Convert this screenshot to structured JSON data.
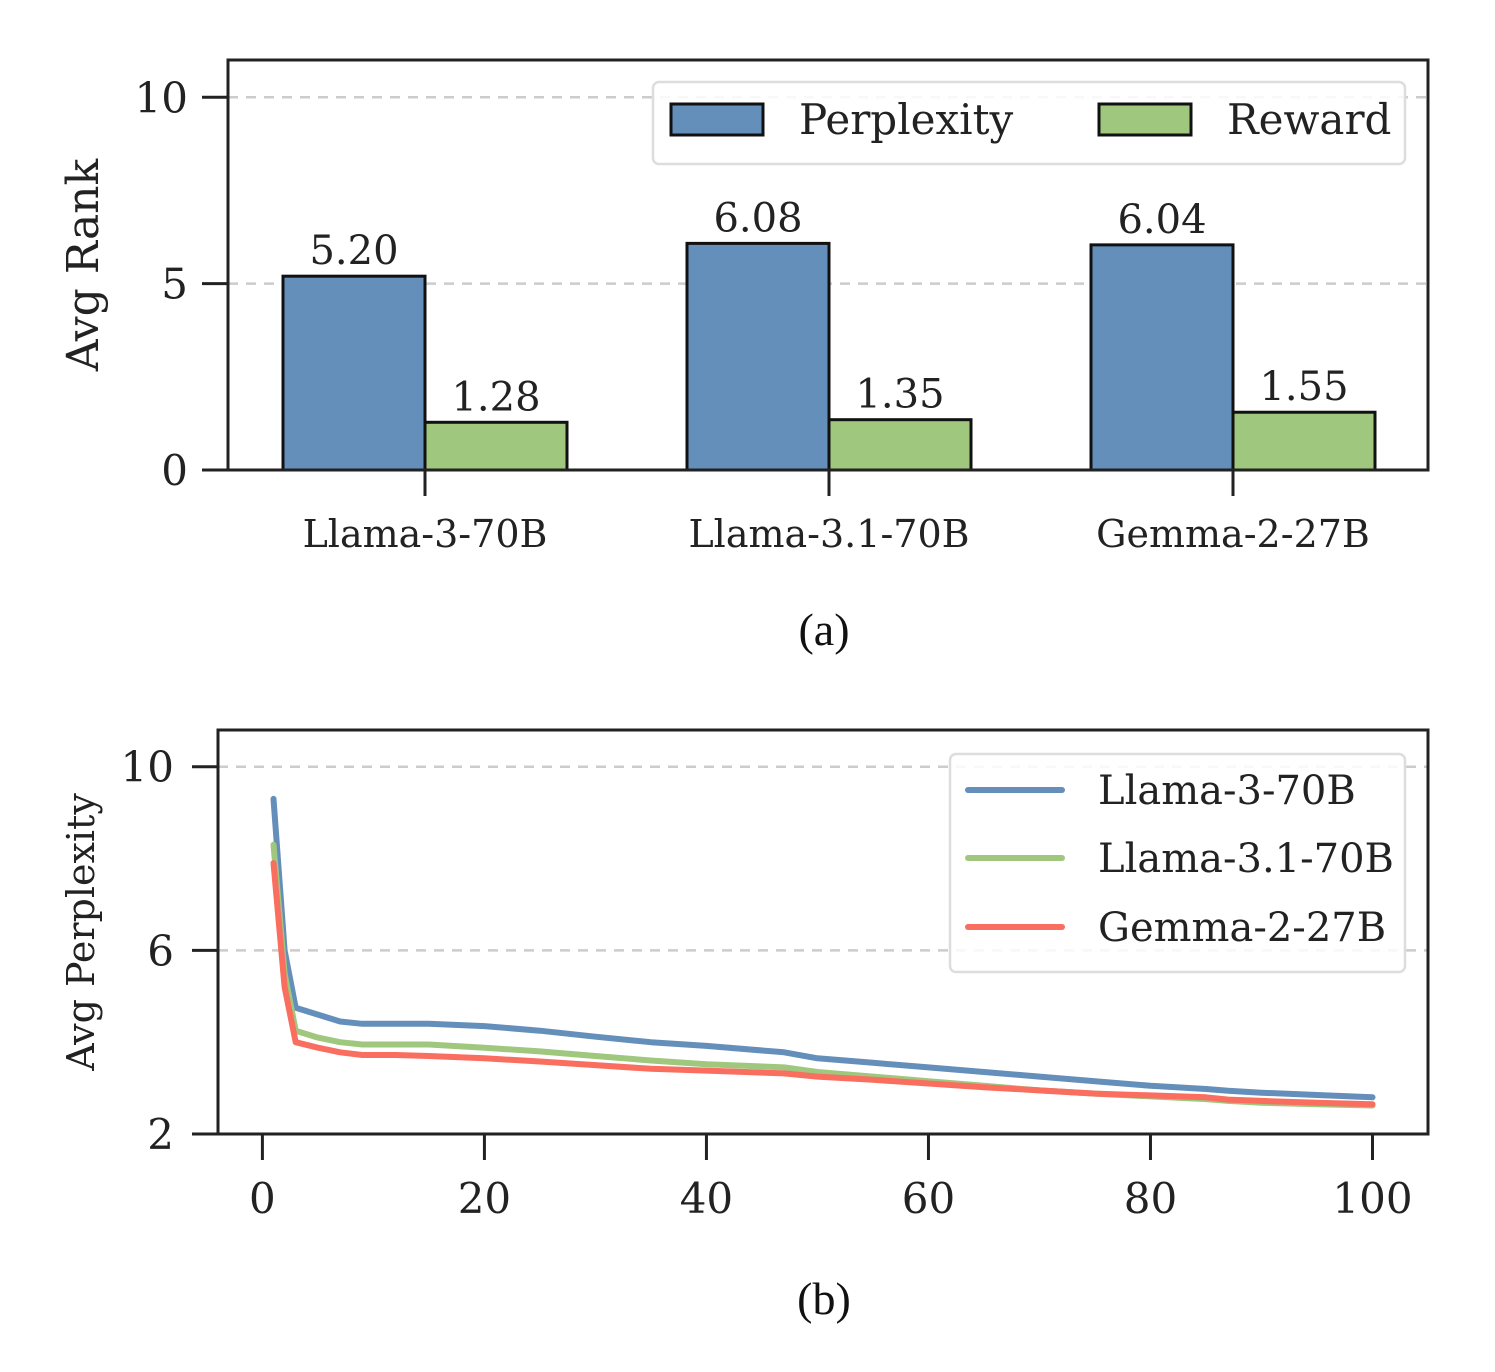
{
  "chart_data": [
    {
      "type": "bar",
      "caption": "(a)",
      "ylabel": "Avg Rank",
      "xlabel": "",
      "ylim": [
        0,
        11
      ],
      "yticks": [
        0,
        5,
        10
      ],
      "grid": true,
      "legend_position": "top-right",
      "categories": [
        "Llama-3-70B",
        "Llama-3.1-70B",
        "Gemma-2-27B"
      ],
      "series": [
        {
          "name": "Perplexity",
          "color": "#648fbb",
          "values": [
            5.2,
            6.08,
            6.04
          ],
          "labels": [
            "5.20",
            "6.08",
            "6.04"
          ]
        },
        {
          "name": "Reward",
          "color": "#a0c77e",
          "values": [
            1.28,
            1.35,
            1.55
          ],
          "labels": [
            "1.28",
            "1.35",
            "1.55"
          ]
        }
      ]
    },
    {
      "type": "line",
      "caption": "(b)",
      "ylabel": "Avg Perplexity",
      "xlabel": "",
      "xlim": [
        -4,
        105
      ],
      "ylim": [
        2,
        10.8
      ],
      "xticks": [
        0,
        20,
        40,
        60,
        80,
        100
      ],
      "yticks": [
        2,
        6,
        10
      ],
      "grid": true,
      "legend_position": "top-right",
      "x": [
        1,
        2,
        3,
        5,
        7,
        9,
        12,
        15,
        20,
        25,
        30,
        35,
        40,
        47,
        50,
        55,
        60,
        65,
        70,
        75,
        80,
        85,
        87,
        90,
        95,
        100
      ],
      "series": [
        {
          "name": "Llama-3-70B",
          "color": "#648fbb",
          "values": [
            9.3,
            6.0,
            4.75,
            4.6,
            4.45,
            4.4,
            4.4,
            4.4,
            4.35,
            4.25,
            4.12,
            4.0,
            3.92,
            3.78,
            3.65,
            3.55,
            3.45,
            3.35,
            3.25,
            3.15,
            3.05,
            2.98,
            2.94,
            2.9,
            2.85,
            2.8
          ]
        },
        {
          "name": "Llama-3.1-70B",
          "color": "#a0c77e",
          "values": [
            8.3,
            5.5,
            4.25,
            4.1,
            4.0,
            3.95,
            3.95,
            3.95,
            3.88,
            3.8,
            3.7,
            3.6,
            3.52,
            3.45,
            3.35,
            3.25,
            3.15,
            3.05,
            2.95,
            2.88,
            2.82,
            2.76,
            2.72,
            2.68,
            2.65,
            2.62
          ]
        },
        {
          "name": "Gemma-2-27B",
          "color": "#f96e5f",
          "values": [
            7.9,
            5.2,
            4.0,
            3.88,
            3.78,
            3.72,
            3.72,
            3.7,
            3.65,
            3.58,
            3.5,
            3.42,
            3.38,
            3.32,
            3.25,
            3.18,
            3.1,
            3.02,
            2.95,
            2.88,
            2.84,
            2.8,
            2.75,
            2.72,
            2.68,
            2.65
          ]
        }
      ]
    }
  ]
}
